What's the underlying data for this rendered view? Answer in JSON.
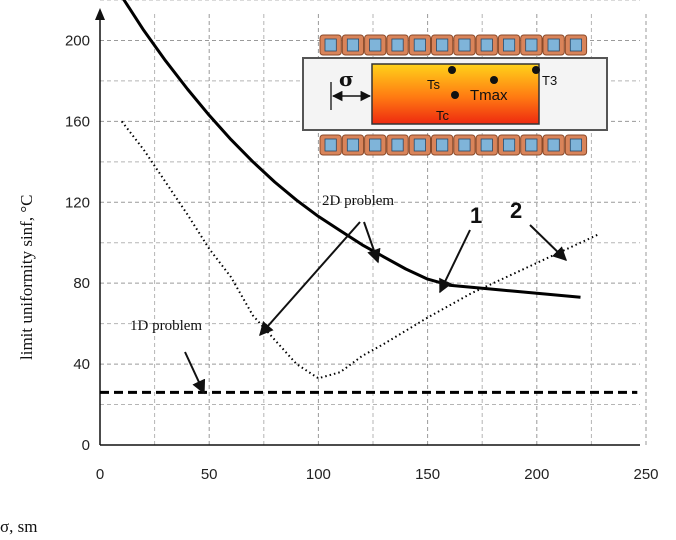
{
  "chart_data": {
    "type": "line",
    "title": "",
    "xlabel": "σ, sm",
    "ylabel": "limit uniformity sinf, °C",
    "xlim": [
      0,
      250
    ],
    "ylim": [
      0,
      220
    ],
    "xticks": [
      "0",
      "50",
      "100",
      "150",
      "200",
      "250"
    ],
    "yticks": [
      "0",
      "40",
      "80",
      "120",
      "160",
      "200"
    ],
    "grid": "dashed",
    "series": [
      {
        "name": "1",
        "style": "solid-thick",
        "color": "#000000",
        "x": [
          8,
          20,
          30,
          40,
          50,
          60,
          70,
          80,
          90,
          100,
          110,
          120,
          130,
          140,
          150,
          160,
          170,
          180,
          190,
          200,
          210,
          220
        ],
        "y": [
          225,
          205,
          190,
          176,
          163,
          151,
          140,
          130,
          121,
          113,
          106,
          99,
          93,
          87,
          82,
          79,
          78,
          77,
          76,
          75,
          74,
          73
        ]
      },
      {
        "name": "2",
        "style": "dotted",
        "color": "#000000",
        "x": [
          10,
          20,
          30,
          40,
          50,
          60,
          70,
          80,
          90,
          100,
          110,
          120,
          130,
          150,
          170,
          190,
          210,
          228
        ],
        "y": [
          160,
          146,
          130,
          114,
          97,
          83,
          64,
          52,
          40,
          33,
          36,
          44,
          50,
          63,
          75,
          85,
          95,
          104
        ]
      },
      {
        "name": "1D problem",
        "style": "dashed-thick",
        "color": "#000000",
        "x": [
          0,
          246
        ],
        "y": [
          26,
          26
        ]
      }
    ],
    "annotations": {
      "label_2d": "2D problem",
      "label_1d": "1D problem",
      "label_1": "1",
      "label_2": "2"
    },
    "inset": {
      "sigma": "σ",
      "ts": "Ts",
      "tc": "Tc",
      "tmax": "Tmax",
      "t3": "T3"
    }
  }
}
